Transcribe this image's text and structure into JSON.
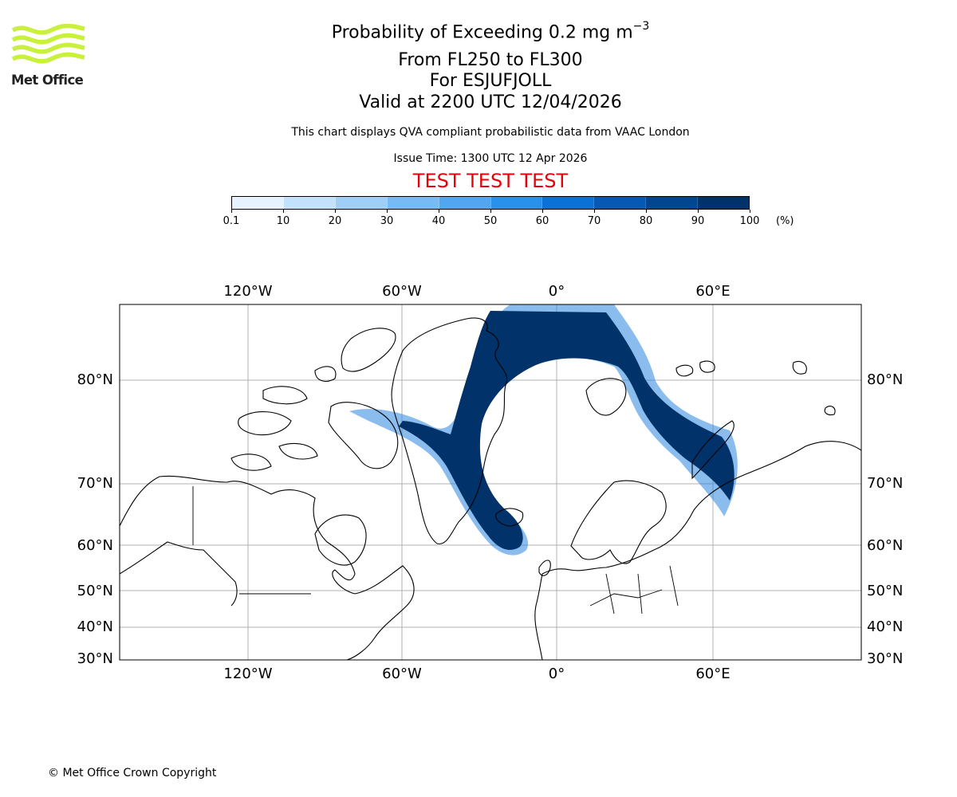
{
  "logo": {
    "text": "Met Office",
    "icon": "met-office-wave-logo",
    "color": "#c8f03c"
  },
  "title": {
    "main_prefix": "Probability of Exceeding 0.2 mg m",
    "main_exp": "−3",
    "flight_levels": "From FL250 to FL300",
    "volcano": "For ESJUFJOLL",
    "valid": "Valid at 2200 UTC 12/04/2026"
  },
  "subtitle": "This chart displays QVA compliant probabilistic data from VAAC London",
  "issue_time": "Issue Time: 1300 UTC 12 Apr 2026",
  "test_banner": "TEST TEST TEST",
  "colorbar": {
    "unit": "(%)",
    "labels": [
      "0.1",
      "10",
      "20",
      "30",
      "40",
      "50",
      "60",
      "70",
      "80",
      "90",
      "100"
    ],
    "colors": [
      "#e6f3ff",
      "#c3e1fb",
      "#9fcff6",
      "#78baf3",
      "#50a6f0",
      "#2891ec",
      "#0a72d7",
      "#0559b4",
      "#024591",
      "#02326a"
    ]
  },
  "map": {
    "lon_labels": [
      "120°W",
      "60°W",
      "0°",
      "60°E"
    ],
    "lat_labels": [
      "80°N",
      "70°N",
      "60°N",
      "50°N",
      "40°N",
      "30°N"
    ],
    "ash_color": "#02326a",
    "ash_edge_color": "#2a86e0"
  },
  "copyright": "© Met Office Crown Copyright"
}
